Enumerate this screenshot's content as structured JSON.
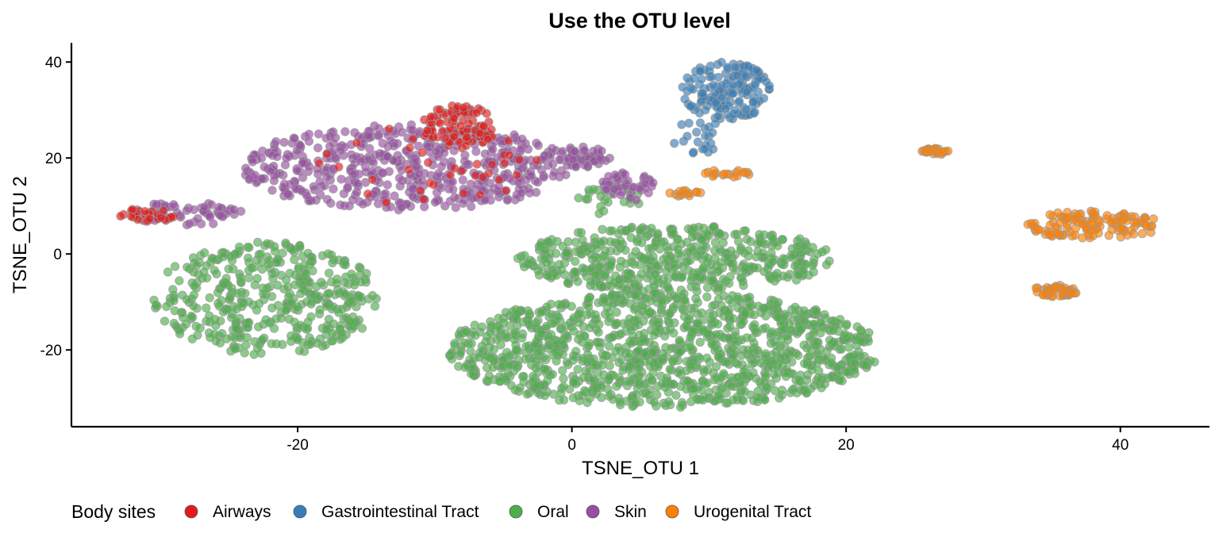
{
  "chart_data": {
    "type": "scatter",
    "title": "Use the OTU level",
    "xlabel": "TSNE_OTU 1",
    "ylabel": "TSNE_OTU 2",
    "xlim": [
      -36.5,
      46.5
    ],
    "ylim": [
      -36,
      44
    ],
    "xticks": [
      -20,
      0,
      20,
      40
    ],
    "yticks": [
      -20,
      0,
      20,
      40
    ],
    "grid": false,
    "legend_position": "bottom",
    "legend_title": "Body sites",
    "point_alpha": 0.65,
    "point_stroke": "#999999",
    "series": [
      {
        "name": "Airways",
        "color": "#E41A1C",
        "clusters": [
          {
            "x": [
              -11,
              -5.5
            ],
            "y": [
              22,
              31
            ],
            "n": 95
          },
          {
            "x": [
              -33,
              -29
            ],
            "y": [
              6.5,
              9.5
            ],
            "n": 28
          },
          {
            "x": [
              -19,
              -2
            ],
            "y": [
              9,
              27
            ],
            "n": 38
          }
        ]
      },
      {
        "name": "Gastrointestinal Tract",
        "color": "#377EB8",
        "clusters": [
          {
            "x": [
              8,
              14.5
            ],
            "y": [
              28,
              40
            ],
            "n": 150
          },
          {
            "x": [
              7.2,
              11.5
            ],
            "y": [
              19,
              28
            ],
            "n": 22
          }
        ]
      },
      {
        "name": "Oral",
        "color": "#4DAF4A",
        "clusters": [
          {
            "x": [
              -4,
              19
            ],
            "y": [
              -8,
              6
            ],
            "n": 500
          },
          {
            "x": [
              -9,
              22.5
            ],
            "y": [
              -32,
              -8
            ],
            "n": 1200
          },
          {
            "x": [
              -30.5,
              -14
            ],
            "y": [
              -21,
              2.5
            ],
            "n": 420
          },
          {
            "x": [
              0,
              5
            ],
            "y": [
              8,
              15
            ],
            "n": 25
          }
        ]
      },
      {
        "name": "Skin",
        "color": "#984EA3",
        "clusters": [
          {
            "x": [
              -24,
              0
            ],
            "y": [
              9,
              27
            ],
            "n": 520
          },
          {
            "x": [
              -1,
              3
            ],
            "y": [
              18,
              22.5
            ],
            "n": 45
          },
          {
            "x": [
              2,
              6
            ],
            "y": [
              11,
              17
            ],
            "n": 45
          },
          {
            "x": [
              -32,
              -24
            ],
            "y": [
              6,
              11
            ],
            "n": 60
          }
        ]
      },
      {
        "name": "Urogenital Tract",
        "color": "#FF7F00",
        "clusters": [
          {
            "x": [
              25.5,
              27.5
            ],
            "y": [
              20.7,
              22
            ],
            "n": 28
          },
          {
            "x": [
              33,
              43
            ],
            "y": [
              3,
              9
            ],
            "n": 120
          },
          {
            "x": [
              33.5,
              37
            ],
            "y": [
              -9,
              -6.5
            ],
            "n": 50
          },
          {
            "x": [
              9.5,
              13
            ],
            "y": [
              16,
              17.5
            ],
            "n": 18
          },
          {
            "x": [
              7,
              9.5
            ],
            "y": [
              12,
              13.5
            ],
            "n": 14
          }
        ]
      }
    ]
  }
}
